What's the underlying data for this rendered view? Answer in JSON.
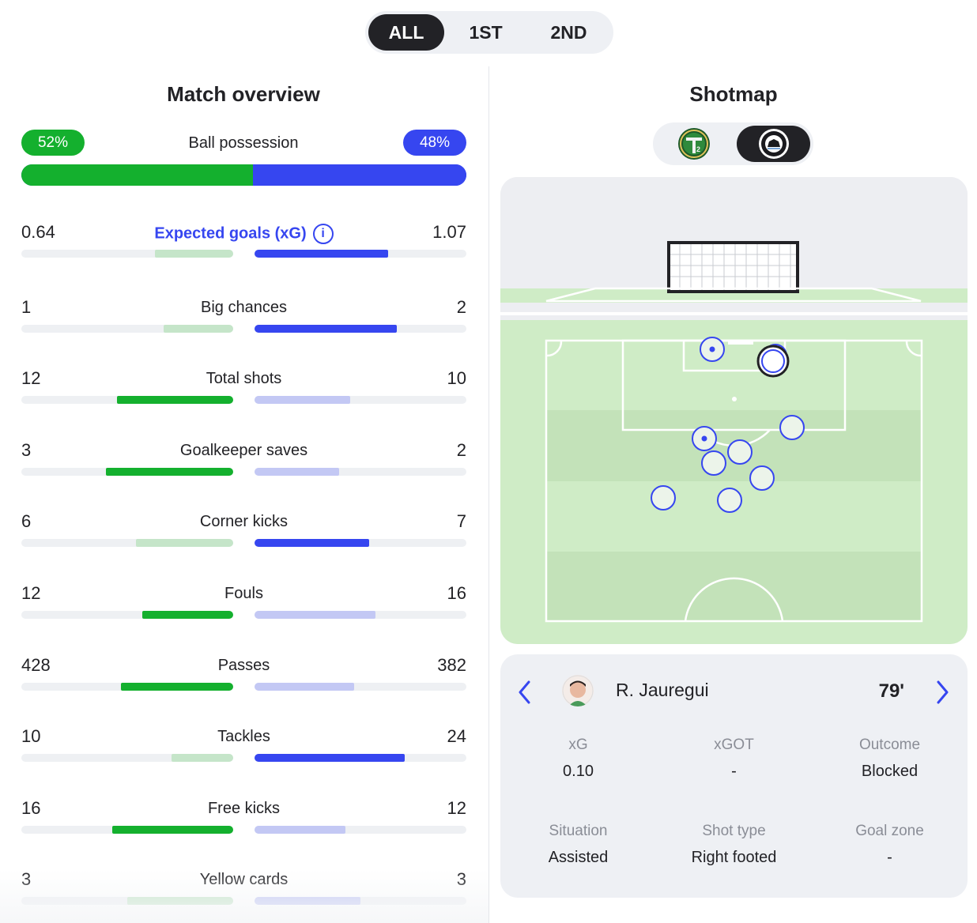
{
  "period_tabs": [
    {
      "label": "ALL",
      "active": true
    },
    {
      "label": "1ST",
      "active": false
    },
    {
      "label": "2ND",
      "active": false
    }
  ],
  "overview": {
    "title": "Match overview",
    "possession": {
      "label": "Ball possession",
      "home": "52%",
      "away": "48%",
      "home_share": 0.52
    },
    "stats": [
      {
        "label": "Expected goals (xG)",
        "home": "0.64",
        "away": "1.07",
        "home_fraction": 0.37,
        "away_fraction": 0.63,
        "leader": "away",
        "has_info": true
      },
      {
        "label": "Big chances",
        "home": "1",
        "away": "2",
        "home_fraction": 0.33,
        "away_fraction": 0.67,
        "leader": "away"
      },
      {
        "label": "Total shots",
        "home": "12",
        "away": "10",
        "home_fraction": 0.55,
        "away_fraction": 0.45,
        "leader": "home"
      },
      {
        "label": "Goalkeeper saves",
        "home": "3",
        "away": "2",
        "home_fraction": 0.6,
        "away_fraction": 0.4,
        "leader": "home"
      },
      {
        "label": "Corner kicks",
        "home": "6",
        "away": "7",
        "home_fraction": 0.46,
        "away_fraction": 0.54,
        "leader": "away"
      },
      {
        "label": "Fouls",
        "home": "12",
        "away": "16",
        "home_fraction": 0.43,
        "away_fraction": 0.57,
        "leader": "home"
      },
      {
        "label": "Passes",
        "home": "428",
        "away": "382",
        "home_fraction": 0.53,
        "away_fraction": 0.47,
        "leader": "home"
      },
      {
        "label": "Tackles",
        "home": "10",
        "away": "24",
        "home_fraction": 0.29,
        "away_fraction": 0.71,
        "leader": "away"
      },
      {
        "label": "Free kicks",
        "home": "16",
        "away": "12",
        "home_fraction": 0.57,
        "away_fraction": 0.43,
        "leader": "home"
      },
      {
        "label": "Yellow cards",
        "home": "3",
        "away": "3",
        "home_fraction": 0.5,
        "away_fraction": 0.5,
        "leader": "none"
      }
    ]
  },
  "shotmap": {
    "title": "Shotmap",
    "teams": [
      {
        "icon": "home-team-crest-icon",
        "active": false
      },
      {
        "icon": "away-team-crest-icon",
        "active": true
      }
    ],
    "selected_shot": {
      "player": "R. Jauregui",
      "minute": "79'",
      "details": [
        {
          "label": "xG",
          "value": "0.10"
        },
        {
          "label": "xGOT",
          "value": "-"
        },
        {
          "label": "Outcome",
          "value": "Blocked"
        },
        {
          "label": "Situation",
          "value": "Assisted"
        },
        {
          "label": "Shot type",
          "value": "Right footed"
        },
        {
          "label": "Goal zone",
          "value": "-"
        }
      ]
    }
  },
  "colors": {
    "home": "#14b02e",
    "home_light": "#c5e5c9",
    "away": "#3646f0",
    "away_light": "#c3c8f4",
    "dark": "#222226",
    "pitch": "#cfecc6"
  }
}
